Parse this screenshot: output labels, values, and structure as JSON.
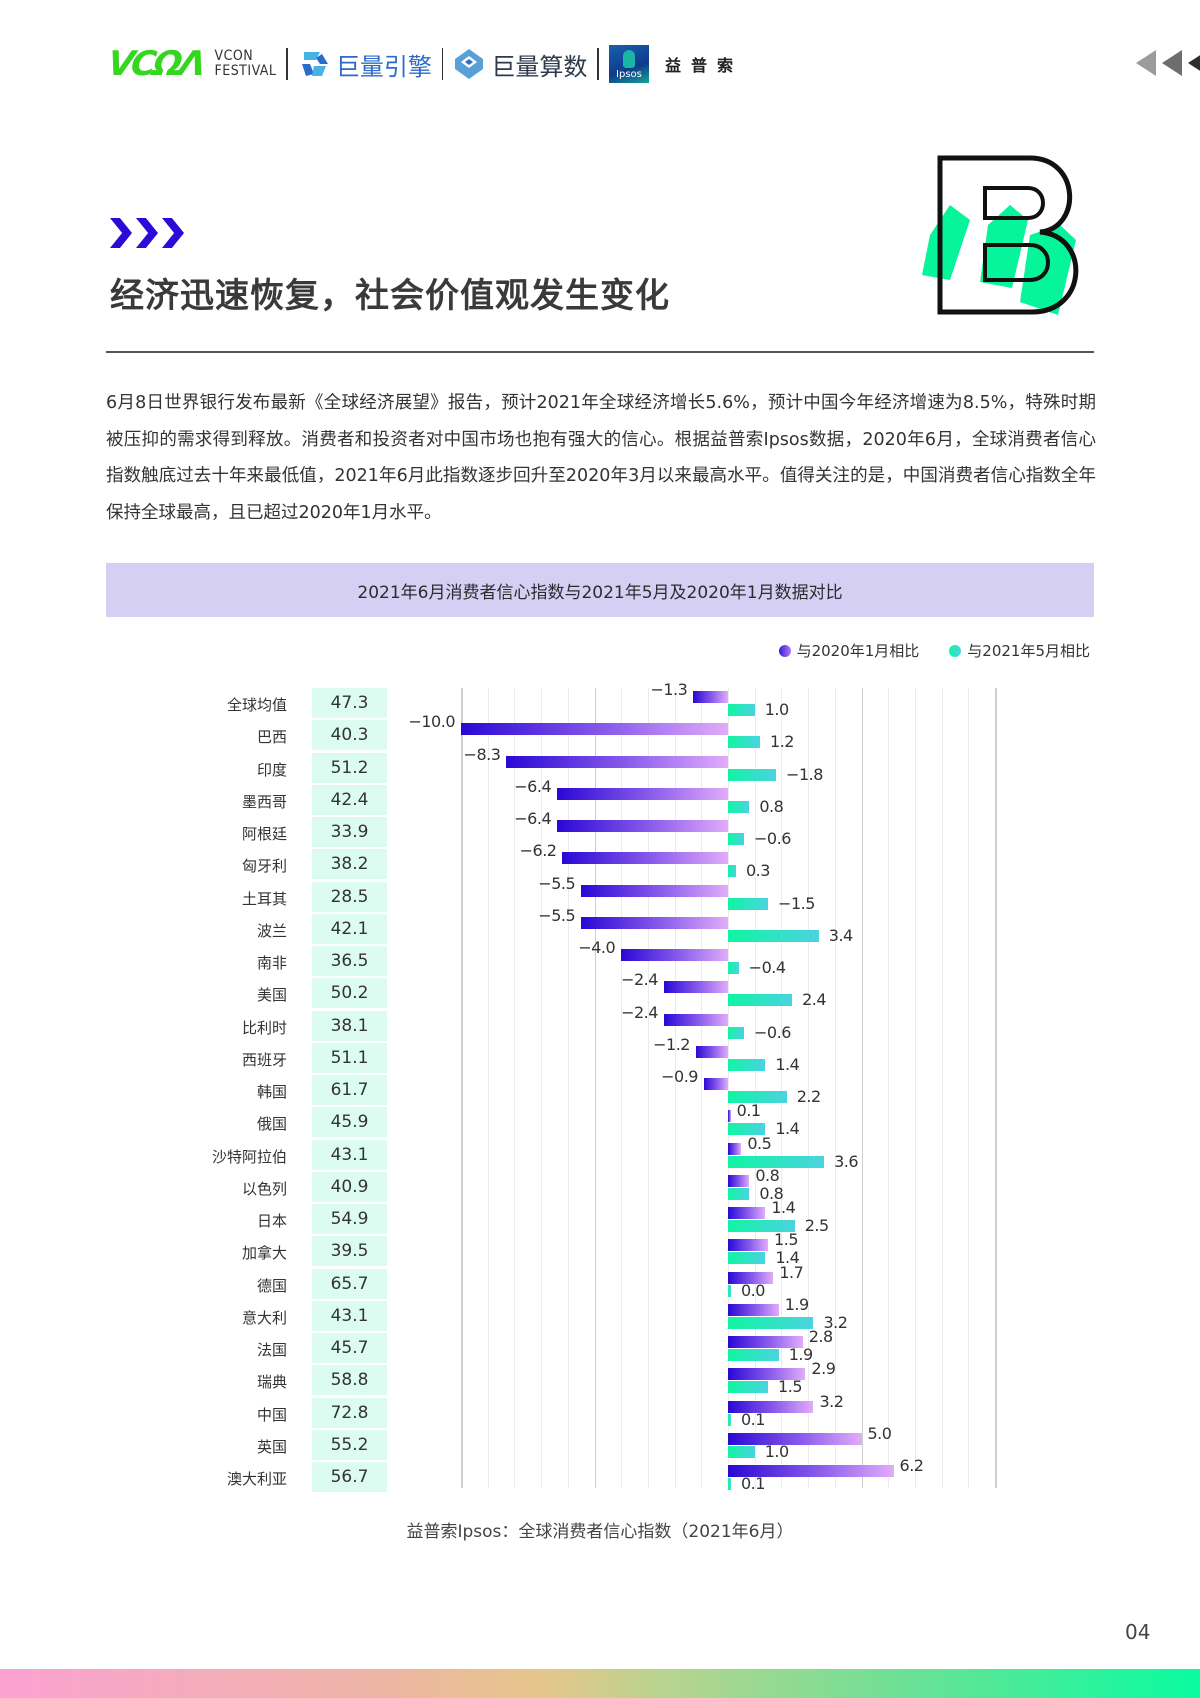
{
  "header": {
    "logos": {
      "vcon_mark": "VCΩΛ",
      "vcon_line1": "VCON",
      "vcon_line2": "FESTIVAL",
      "brand1": "巨量引擎",
      "brand2": "巨量算数",
      "ipsos_box": "Ipsos",
      "ipsos_cn": "益普索"
    },
    "nav_icon": "triple-left-triangles-icon"
  },
  "section": {
    "marker_icon": "triple-chevron-right-icon",
    "title": "经济迅速恢复，社会价值观发生变化",
    "badge_letter": "B"
  },
  "paragraph": "6月8日世界银行发布最新《全球经济展望》报告，预计2021年全球经济增长5.6%，预计中国今年经济增速为8.5%，特殊时期被压抑的需求得到释放。消费者和投资者对中国市场也抱有强大的信心。根据益普索Ipsos数据，2020年6月，全球消费者信心指数触底过去十年来最低值，2021年6月此指数逐步回升至2020年3月以来最高水平。值得关注的是，中国消费者信心指数全年保持全球最高，且已超过2020年1月水平。",
  "chart_header": "2021年6月消费者信心指数与2021年5月及2020年1月数据对比",
  "legend": {
    "series1": "与2020年1月相比",
    "series2": "与2021年5月相比",
    "series1_color": "#6b3fe6",
    "series2_color": "#2ee0c0"
  },
  "source": "益普索Ipsos：全球消费者信心指数（2021年6月）",
  "page_number": "04",
  "chart_data": {
    "type": "bar",
    "orientation": "horizontal",
    "title": "2021年6月消费者信心指数与2021年5月及2020年1月数据对比",
    "categories": [
      "全球均值",
      "巴西",
      "印度",
      "墨西哥",
      "阿根廷",
      "匈牙利",
      "土耳其",
      "波兰",
      "南非",
      "美国",
      "比利时",
      "西班牙",
      "韩国",
      "俄国",
      "沙特阿拉伯",
      "以色列",
      "日本",
      "加拿大",
      "德国",
      "意大利",
      "法国",
      "瑞典",
      "中国",
      "英国",
      "澳大利亚"
    ],
    "index_jun_2021": [
      47.3,
      40.3,
      51.2,
      42.4,
      33.9,
      38.2,
      28.5,
      42.1,
      36.5,
      50.2,
      38.1,
      51.1,
      61.7,
      45.9,
      43.1,
      40.9,
      54.9,
      39.5,
      65.7,
      43.1,
      45.7,
      58.8,
      72.8,
      55.2,
      56.7
    ],
    "series": [
      {
        "name": "与2020年1月相比",
        "values": [
          -1.3,
          -10.0,
          -8.3,
          -6.4,
          -6.4,
          -6.2,
          -5.5,
          -5.5,
          -4.0,
          -2.4,
          -2.4,
          -1.2,
          -0.9,
          0.1,
          0.5,
          0.8,
          1.4,
          1.5,
          1.7,
          1.9,
          2.8,
          2.9,
          3.2,
          5.0,
          6.2
        ]
      },
      {
        "name": "与2021年5月相比",
        "values": [
          1.0,
          1.2,
          -1.8,
          0.8,
          -0.6,
          0.3,
          -1.5,
          3.4,
          -0.4,
          2.4,
          -0.6,
          1.4,
          2.2,
          1.4,
          3.6,
          0.8,
          2.5,
          1.4,
          0.0,
          3.2,
          1.9,
          1.5,
          0.1,
          1.0,
          0.1
        ]
      }
    ],
    "xlim": [
      -10,
      10
    ],
    "grid": true,
    "legend_position": "top-right"
  }
}
